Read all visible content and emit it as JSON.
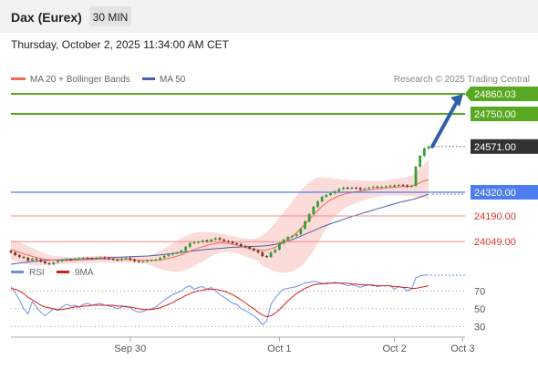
{
  "header": {
    "instrument": "Dax (Eurex)",
    "timeframe": "30 MIN",
    "datetime": "Thursday, October 2, 2025 11:34:00 AM CET"
  },
  "legend": {
    "ma20_label": "MA 20 + Bollinger Bands",
    "ma50_label": "MA 50",
    "credit": "Research © 2025 Trading Central",
    "rsi_label": "RSI",
    "ma9_label": "9MA"
  },
  "colors": {
    "background": "#ffffff",
    "header_bg": "#f2f2f2",
    "candle_up": "#3a9e3a",
    "candle_down": "#7a3a2a",
    "ma20": "#f26b5b",
    "bands_fill": "#fcd6d1",
    "ma50": "#4b5fa3",
    "resistance": "#58a821",
    "support_blue": "#4d7df0",
    "support_red": "#f08c8c",
    "arrow": "#2f5fa8",
    "price_label_bg": "#333333",
    "rsi_line": "#6f8fe0",
    "rsi_ma": "#d62020",
    "grid": "#9a9a9a",
    "axis_text": "#555555",
    "light_text": "#888888"
  },
  "chart_data": [
    {
      "type": "candlestick",
      "x_tick_labels": [
        "Sep 30",
        "Oct 1",
        "Oct 2",
        "Oct 3"
      ],
      "ylim": [
        23900,
        24900
      ],
      "current_price": 24571.0,
      "target": 24860.03,
      "levels": [
        {
          "value": 24860.03,
          "label": "24860.03",
          "kind": "resistance"
        },
        {
          "value": 24750.0,
          "label": "24750.00",
          "kind": "resistance"
        },
        {
          "value": 24571.0,
          "label": "24571.00",
          "kind": "last"
        },
        {
          "value": 24320.0,
          "label": "24320.00",
          "kind": "pivot"
        },
        {
          "value": 24190.0,
          "label": "24190.00",
          "kind": "support"
        },
        {
          "value": 24049.0,
          "label": "24049.00",
          "kind": "support"
        }
      ],
      "close": [
        23990,
        23975,
        23965,
        23960,
        23945,
        23955,
        23950,
        23940,
        23930,
        23925,
        23935,
        23942,
        23948,
        23952,
        23950,
        23955,
        23958,
        23960,
        23957,
        23955,
        23960,
        23962,
        23958,
        23955,
        23950,
        23948,
        23955,
        23958,
        23950,
        23942,
        23938,
        23940,
        23945,
        23948,
        23950,
        23960,
        23970,
        23978,
        23985,
        23990,
        24000,
        24020,
        24040,
        24045,
        24048,
        24055,
        24050,
        24060,
        24068,
        24060,
        24052,
        24048,
        24040,
        24035,
        24025,
        24020,
        24010,
        24000,
        23990,
        23970,
        23965,
        23990,
        24005,
        24040,
        24060,
        24075,
        24080,
        24090,
        24120,
        24160,
        24200,
        24240,
        24270,
        24295,
        24305,
        24315,
        24325,
        24338,
        24345,
        24340,
        24345,
        24343,
        24335,
        24340,
        24345,
        24350,
        24348,
        24350,
        24352,
        24356,
        24355,
        24360,
        24358,
        24350,
        24355,
        24460,
        24520,
        24560,
        24571
      ],
      "ma20": [
        24005,
        23998,
        23990,
        23982,
        23975,
        23968,
        23962,
        23956,
        23952,
        23950,
        23948,
        23946,
        23945,
        23945,
        23946,
        23947,
        23948,
        23949,
        23950,
        23951,
        23952,
        23953,
        23953,
        23953,
        23952,
        23951,
        23951,
        23951,
        23950,
        23949,
        23948,
        23947,
        23946,
        23946,
        23946,
        23948,
        23952,
        23957,
        23963,
        23969,
        23977,
        23987,
        23997,
        24006,
        24014,
        24021,
        24028,
        24034,
        24039,
        24041,
        24041,
        24039,
        24035,
        24030,
        24024,
        24017,
        24012,
        24008,
        24004,
        24000,
        24004,
        24010,
        24018,
        24030,
        24044,
        24060,
        24078,
        24098,
        24120,
        24145,
        24170,
        24195,
        24220,
        24243,
        24262,
        24278,
        24290,
        24300,
        24308,
        24314,
        24319,
        24323,
        24327,
        24330,
        24333,
        24336,
        24339,
        24341,
        24343,
        24345,
        24347,
        24349,
        24351,
        24352,
        24354,
        24362,
        24372,
        24382,
        24390
      ],
      "ma50": [
        23925,
        23928,
        23931,
        23934,
        23937,
        23940,
        23942,
        23944,
        23946,
        23947,
        23948,
        23949,
        23950,
        23951,
        23952,
        23953,
        23954,
        23955,
        23956,
        23957,
        23958,
        23959,
        23960,
        23961,
        23962,
        23963,
        23964,
        23965,
        23966,
        23967,
        23968,
        23969,
        23970,
        23972,
        23974,
        23976,
        23978,
        23981,
        23984,
        23987,
        23990,
        23993,
        23996,
        23999,
        24002,
        24004,
        24006,
        24008,
        24010,
        24012,
        24014,
        24016,
        24018,
        24019,
        24020,
        24021,
        24022,
        24023,
        24024,
        24025,
        24027,
        24030,
        24034,
        24039,
        24045,
        24052,
        24060,
        24069,
        24079,
        24089,
        24099,
        24109,
        24119,
        24129,
        24138,
        24147,
        24155,
        24163,
        24171,
        24179,
        24187,
        24194,
        24201,
        24208,
        24215,
        24222,
        24229,
        24236,
        24243,
        24250,
        24257,
        24263,
        24269,
        24274,
        24279,
        24285,
        24293,
        24301,
        24310
      ],
      "bb_upper": [
        24060,
        24052,
        24045,
        24035,
        24025,
        24015,
        24005,
        23995,
        23985,
        23978,
        23972,
        23968,
        23965,
        23964,
        23964,
        23965,
        23966,
        23967,
        23968,
        23969,
        23970,
        23971,
        23971,
        23971,
        23970,
        23969,
        23968,
        23968,
        23967,
        23966,
        23964,
        23965,
        23968,
        23975,
        23985,
        23998,
        24012,
        24025,
        24040,
        24055,
        24068,
        24080,
        24090,
        24096,
        24100,
        24102,
        24102,
        24100,
        24098,
        24094,
        24090,
        24085,
        24080,
        24075,
        24070,
        24066,
        24064,
        24065,
        24070,
        24085,
        24100,
        24125,
        24150,
        24180,
        24210,
        24240,
        24270,
        24300,
        24330,
        24355,
        24375,
        24392,
        24400,
        24402,
        24400,
        24398,
        24395,
        24392,
        24390,
        24388,
        24386,
        24385,
        24384,
        24383,
        24382,
        24382,
        24382,
        24383,
        24385,
        24388,
        24392,
        24396,
        24400,
        24405,
        24410,
        24430,
        24450,
        24475,
        24500
      ],
      "bb_lower": [
        23950,
        23944,
        23935,
        23929,
        23925,
        23921,
        23919,
        23917,
        23919,
        23922,
        23924,
        23924,
        23925,
        23926,
        23928,
        23929,
        23930,
        23931,
        23932,
        23933,
        23934,
        23935,
        23935,
        23935,
        23934,
        23933,
        23934,
        23934,
        23933,
        23932,
        23932,
        23929,
        23924,
        23917,
        23907,
        23898,
        23892,
        23889,
        23886,
        23883,
        23886,
        23894,
        23904,
        23916,
        23928,
        23940,
        23954,
        23968,
        23980,
        23988,
        23992,
        23993,
        23990,
        23985,
        23978,
        23968,
        23960,
        23951,
        23938,
        23915,
        23908,
        23895,
        23886,
        23880,
        23878,
        23880,
        23886,
        23896,
        23910,
        23935,
        23965,
        23998,
        24040,
        24084,
        24124,
        24158,
        24185,
        24208,
        24226,
        24240,
        24252,
        24261,
        24270,
        24277,
        24284,
        24290,
        24296,
        24299,
        24301,
        24302,
        24302,
        24302,
        24302,
        24299,
        24298,
        24294,
        24294,
        24289,
        24280
      ]
    },
    {
      "type": "line",
      "name": "RSI",
      "ylim": [
        20,
        90
      ],
      "y_tick_labels": [
        "70",
        "50",
        "30"
      ],
      "y_ticks": [
        70,
        50,
        30
      ],
      "rsi": [
        75,
        68,
        60,
        50,
        44,
        58,
        52,
        46,
        42,
        46,
        50,
        48,
        52,
        55,
        53,
        54,
        52,
        55,
        56,
        54,
        55,
        56,
        54,
        53,
        52,
        50,
        52,
        53,
        51,
        48,
        46,
        47,
        49,
        50,
        52,
        56,
        60,
        63,
        66,
        68,
        70,
        74,
        76,
        72,
        74,
        75,
        72,
        74,
        70,
        66,
        63,
        60,
        56,
        55,
        50,
        48,
        45,
        42,
        38,
        32,
        36,
        55,
        62,
        68,
        72,
        73,
        74,
        75,
        77,
        79,
        80,
        81,
        80,
        79,
        78,
        79,
        80,
        79,
        78,
        76,
        77,
        76,
        74,
        76,
        77,
        77,
        75,
        76,
        76,
        76,
        72,
        75,
        74,
        70,
        72,
        85,
        87,
        88,
        88
      ],
      "rsi_ma": [
        73,
        72,
        70,
        67,
        63,
        60,
        57,
        54,
        52,
        51,
        50,
        49,
        49,
        50,
        51,
        52,
        52,
        53,
        53,
        54,
        54,
        54,
        54,
        54,
        54,
        53,
        53,
        52,
        52,
        51,
        50,
        49,
        49,
        49,
        50,
        51,
        53,
        55,
        57,
        60,
        62,
        65,
        67,
        69,
        70,
        71,
        72,
        72,
        72,
        71,
        70,
        68,
        66,
        63,
        60,
        57,
        53,
        50,
        46,
        43,
        41,
        42,
        45,
        49,
        54,
        59,
        63,
        67,
        70,
        73,
        75,
        77,
        78,
        78,
        79,
        79,
        79,
        79,
        79,
        79,
        78,
        78,
        77,
        77,
        77,
        76,
        76,
        76,
        76,
        76,
        75,
        75,
        74,
        74,
        73,
        73,
        74,
        75,
        76
      ]
    }
  ]
}
